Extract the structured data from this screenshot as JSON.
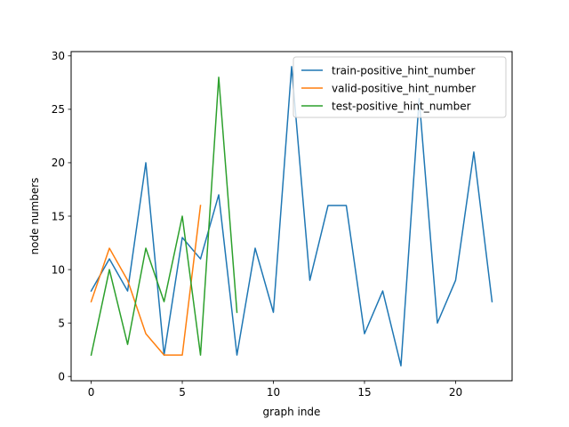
{
  "chart_data": {
    "type": "line",
    "xlabel": "graph inde",
    "ylabel": "node numbers",
    "xlim": [
      -1.1,
      23.1
    ],
    "ylim": [
      -0.4,
      30.4
    ],
    "xticks": [
      0,
      5,
      10,
      15,
      20
    ],
    "yticks": [
      0,
      5,
      10,
      15,
      20,
      25,
      30
    ],
    "grid": false,
    "legend_position": "top-right",
    "series": [
      {
        "name": "train-positive_hint_number",
        "color": "#1f77b4",
        "x": [
          0,
          1,
          2,
          3,
          4,
          5,
          6,
          7,
          8,
          9,
          10,
          11,
          12,
          13,
          14,
          15,
          16,
          17,
          18,
          19,
          20,
          21,
          22
        ],
        "y": [
          8,
          11,
          8,
          20,
          2,
          13,
          11,
          17,
          2,
          12,
          6,
          29,
          9,
          16,
          16,
          4,
          8,
          1,
          26,
          5,
          9,
          21,
          7
        ]
      },
      {
        "name": "valid-positive_hint_number",
        "color": "#ff7f0e",
        "x": [
          0,
          1,
          2,
          3,
          4,
          5,
          6
        ],
        "y": [
          7,
          12,
          9,
          4,
          2,
          2,
          16
        ]
      },
      {
        "name": "test-positive_hint_number",
        "color": "#2ca02c",
        "x": [
          0,
          1,
          2,
          3,
          4,
          5,
          6,
          7,
          8
        ],
        "y": [
          2,
          10,
          3,
          12,
          7,
          15,
          2,
          28,
          6
        ]
      }
    ]
  }
}
